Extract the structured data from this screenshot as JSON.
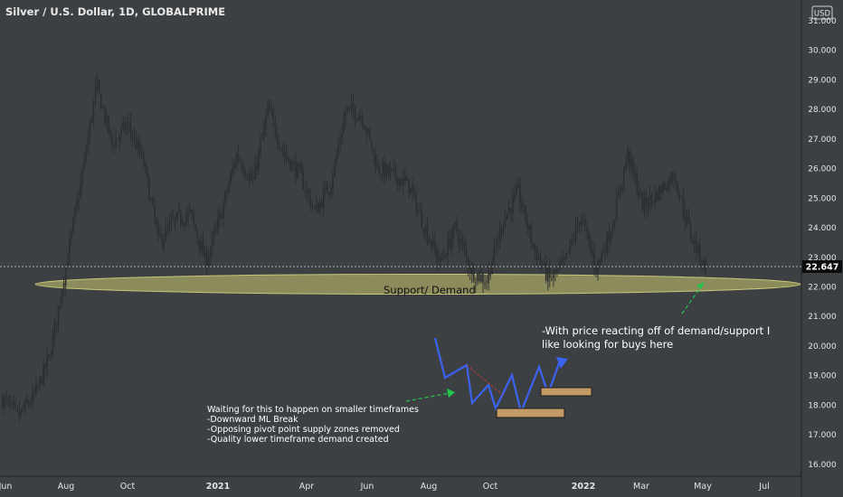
{
  "header": {
    "title": "Silver / U.S. Dollar, 1D, GLOBALPRIME",
    "currency": "USD"
  },
  "colors": {
    "background": "#3d4043",
    "candle": "#2b2d30",
    "axis_text": "#e4e4e4",
    "zone_fill": "#b5b46a",
    "blue_path": "#3b63f0",
    "green_arrow": "#22c84a",
    "pivot_line": "#c23b3b",
    "box_fill": "#c39a66"
  },
  "chart_data": {
    "type": "candlestick",
    "y_axis": {
      "min": 15.6,
      "max": 31.6,
      "ticks": [
        "16.000",
        "17.000",
        "18.000",
        "19.000",
        "20.000",
        "21.000",
        "22.000",
        "23.000",
        "24.000",
        "25.000",
        "26.000",
        "27.000",
        "28.000",
        "29.000",
        "30.000",
        "31.000"
      ]
    },
    "x_axis": {
      "labels": [
        {
          "text": "Jun",
          "bold": false
        },
        {
          "text": "Aug",
          "bold": false
        },
        {
          "text": "Oct",
          "bold": false
        },
        {
          "text": "2021",
          "bold": true
        },
        {
          "text": "Apr",
          "bold": false
        },
        {
          "text": "Jun",
          "bold": false
        },
        {
          "text": "Aug",
          "bold": false
        },
        {
          "text": "Oct",
          "bold": false
        },
        {
          "text": "2022",
          "bold": true
        },
        {
          "text": "Mar",
          "bold": false
        },
        {
          "text": "May",
          "bold": false
        },
        {
          "text": "Jul",
          "bold": false
        }
      ]
    },
    "last_price": "22.647",
    "close_path": [
      {
        "date": "2020-06",
        "price": 18.2
      },
      {
        "date": "2020-06",
        "price": 17.6
      },
      {
        "date": "2020-07",
        "price": 18.3
      },
      {
        "date": "2020-07",
        "price": 19.6
      },
      {
        "date": "2020-07",
        "price": 22.6
      },
      {
        "date": "2020-07",
        "price": 25.5
      },
      {
        "date": "2020-08",
        "price": 28.8
      },
      {
        "date": "2020-08",
        "price": 26.8
      },
      {
        "date": "2020-09",
        "price": 27.5
      },
      {
        "date": "2020-09",
        "price": 26.2
      },
      {
        "date": "2020-09",
        "price": 23.5
      },
      {
        "date": "2020-10",
        "price": 24.2
      },
      {
        "date": "2020-11",
        "price": 24.5
      },
      {
        "date": "2020-11",
        "price": 22.8
      },
      {
        "date": "2020-12",
        "price": 24.5
      },
      {
        "date": "2020-12",
        "price": 26.5
      },
      {
        "date": "2021-01",
        "price": 25.5
      },
      {
        "date": "2021-02",
        "price": 28.0
      },
      {
        "date": "2021-02",
        "price": 26.5
      },
      {
        "date": "2021-03",
        "price": 25.8
      },
      {
        "date": "2021-03",
        "price": 24.5
      },
      {
        "date": "2021-04",
        "price": 25.5
      },
      {
        "date": "2021-05",
        "price": 28.0
      },
      {
        "date": "2021-06",
        "price": 27.8
      },
      {
        "date": "2021-06",
        "price": 26.0
      },
      {
        "date": "2021-07",
        "price": 25.8
      },
      {
        "date": "2021-07",
        "price": 25.4
      },
      {
        "date": "2021-08",
        "price": 24.0
      },
      {
        "date": "2021-08",
        "price": 22.8
      },
      {
        "date": "2021-09",
        "price": 24.0
      },
      {
        "date": "2021-09",
        "price": 22.5
      },
      {
        "date": "2021-10",
        "price": 22.2
      },
      {
        "date": "2021-10",
        "price": 24.2
      },
      {
        "date": "2021-11",
        "price": 25.2
      },
      {
        "date": "2021-11",
        "price": 23.3
      },
      {
        "date": "2021-12",
        "price": 22.2
      },
      {
        "date": "2022-01",
        "price": 22.8
      },
      {
        "date": "2022-01",
        "price": 24.4
      },
      {
        "date": "2022-02",
        "price": 22.6
      },
      {
        "date": "2022-02",
        "price": 24.0
      },
      {
        "date": "2022-03",
        "price": 26.5
      },
      {
        "date": "2022-03",
        "price": 24.7
      },
      {
        "date": "2022-04",
        "price": 25.2
      },
      {
        "date": "2022-04",
        "price": 25.8
      },
      {
        "date": "2022-04",
        "price": 23.8
      },
      {
        "date": "2022-05",
        "price": 22.6
      }
    ],
    "annotations": {
      "zone_label": "Support/ Demand",
      "right_note": [
        "-With price reacting off of demand/support I",
        "like looking for buys here"
      ],
      "left_note": [
        "Waiting for this to happen on smaller timeframes",
        "-Downward ML Break",
        "-Opposing pivot point supply zones removed",
        "-Quality lower timeframe demand created"
      ]
    }
  }
}
